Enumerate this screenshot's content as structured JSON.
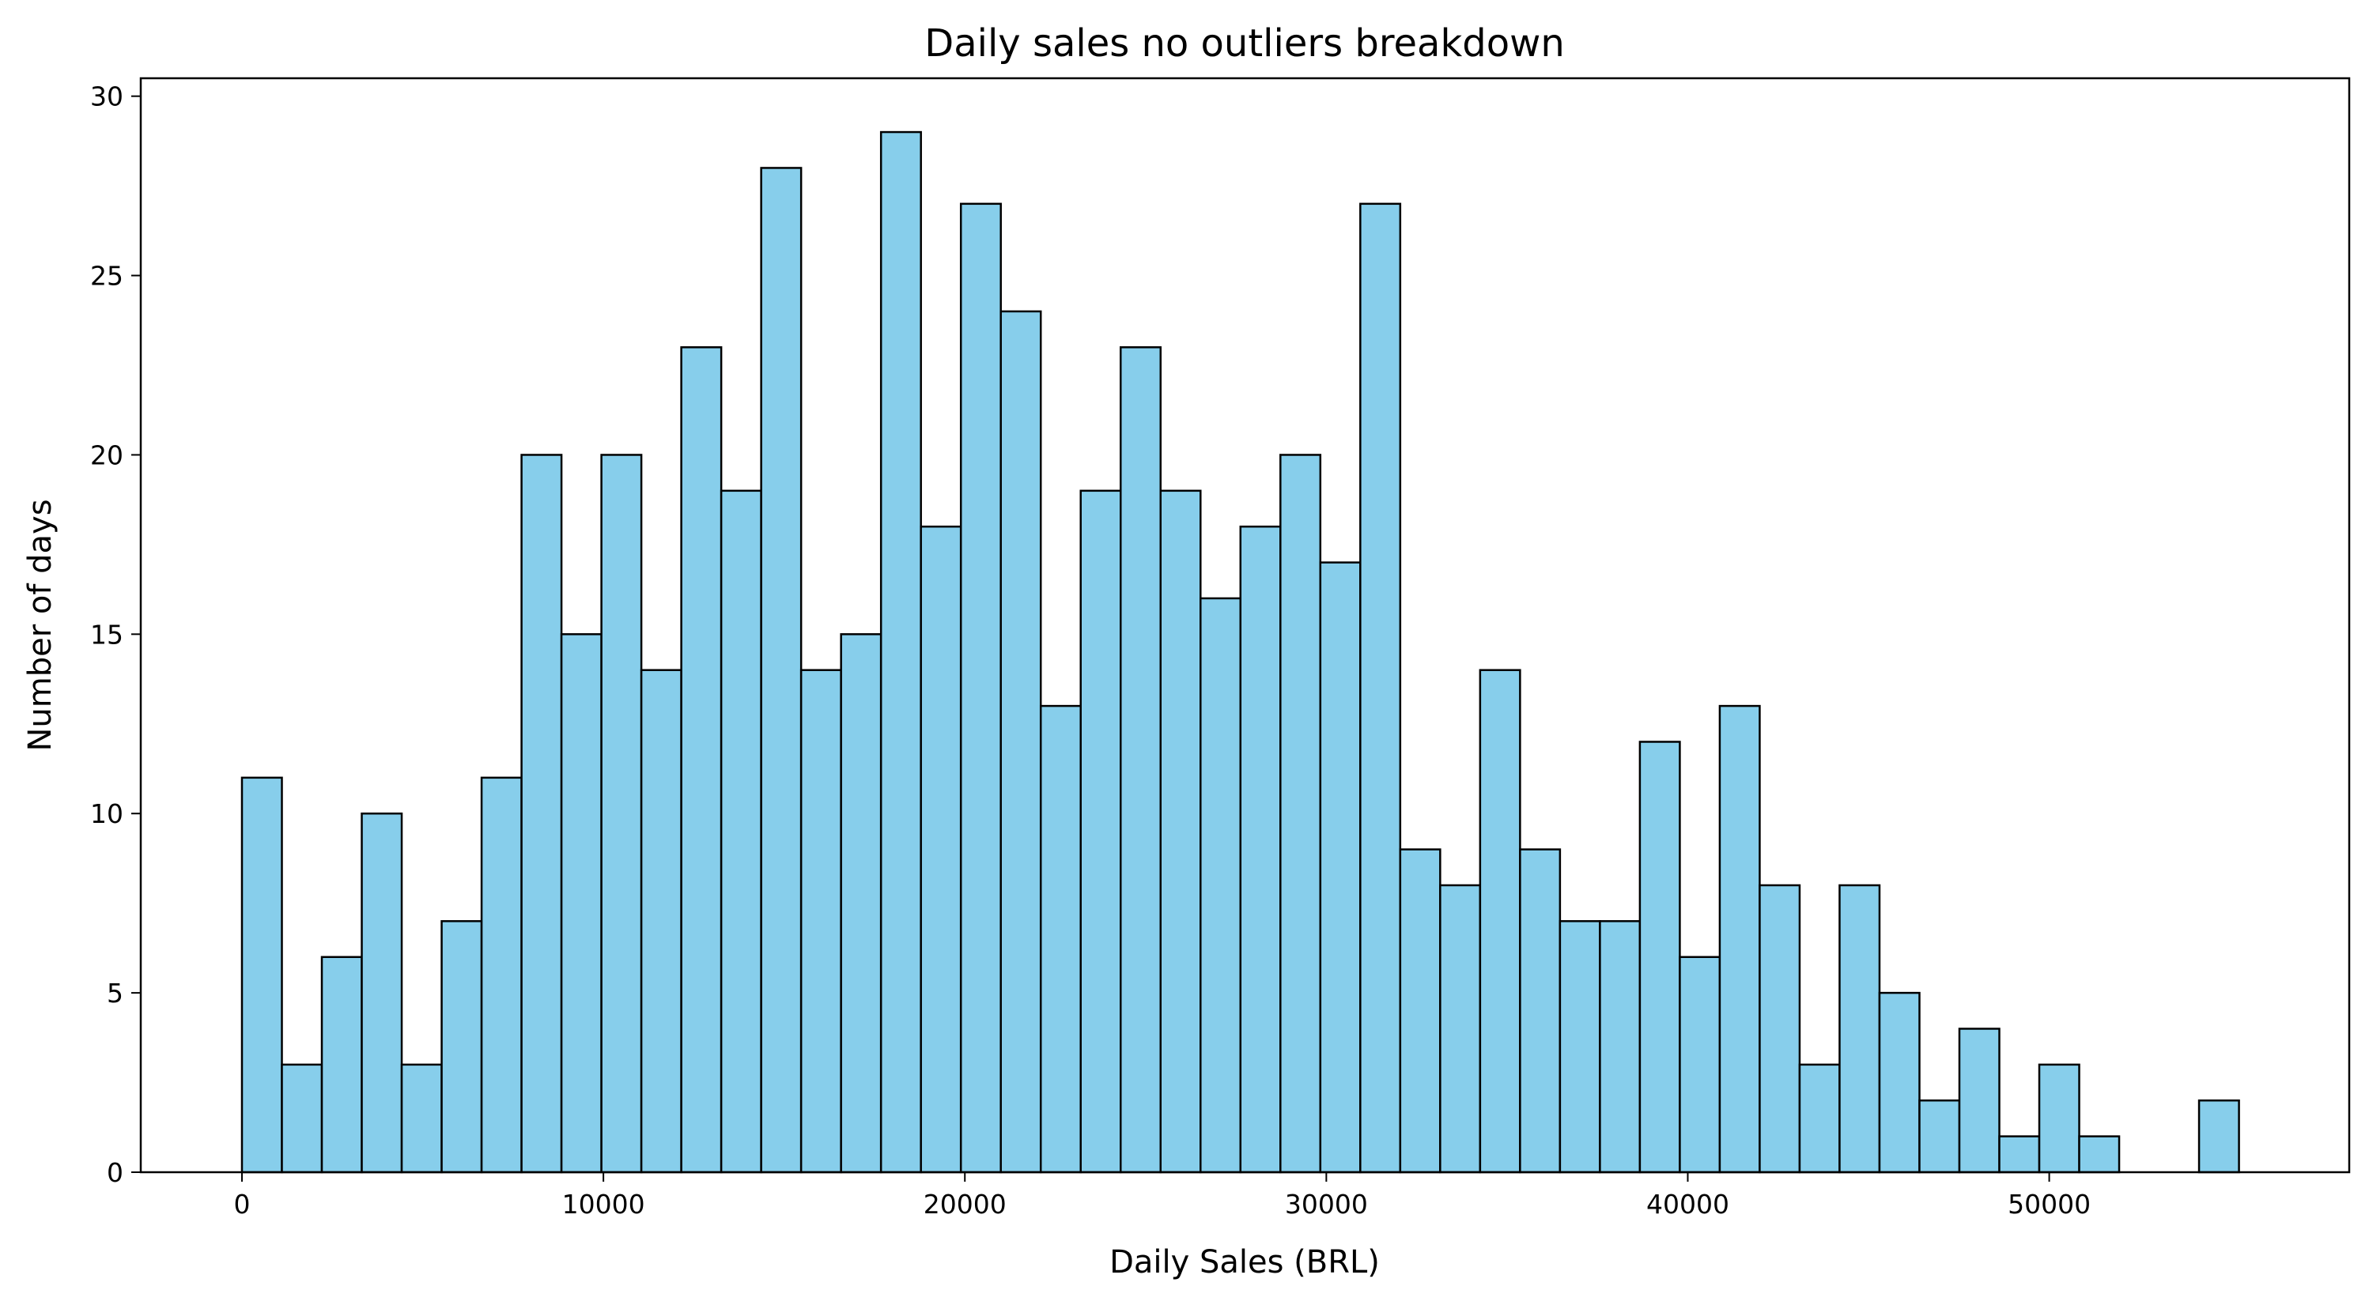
{
  "chart_data": {
    "type": "bar",
    "title": "Daily sales no outliers breakdown",
    "xlabel": "Daily Sales (BRL)",
    "ylabel": "Number of days",
    "xlim": [
      -2800,
      58300
    ],
    "ylim": [
      0,
      30.5
    ],
    "xticks": [
      0,
      10000,
      20000,
      30000,
      40000,
      50000
    ],
    "yticks": [
      0,
      5,
      10,
      15,
      20,
      25,
      30
    ],
    "bin_start": 0,
    "bin_width": 1105,
    "counts": [
      11,
      3,
      6,
      10,
      3,
      7,
      11,
      20,
      15,
      20,
      14,
      23,
      19,
      28,
      14,
      15,
      29,
      18,
      27,
      24,
      13,
      19,
      23,
      19,
      16,
      18,
      20,
      17,
      27,
      9,
      8,
      14,
      9,
      7,
      7,
      12,
      6,
      13,
      8,
      3,
      8,
      5,
      2,
      4,
      1,
      3,
      1,
      0,
      0,
      2
    ],
    "bar_color": "#87CEEB",
    "edge_color": "#000000",
    "grid": false,
    "legend": "none"
  }
}
